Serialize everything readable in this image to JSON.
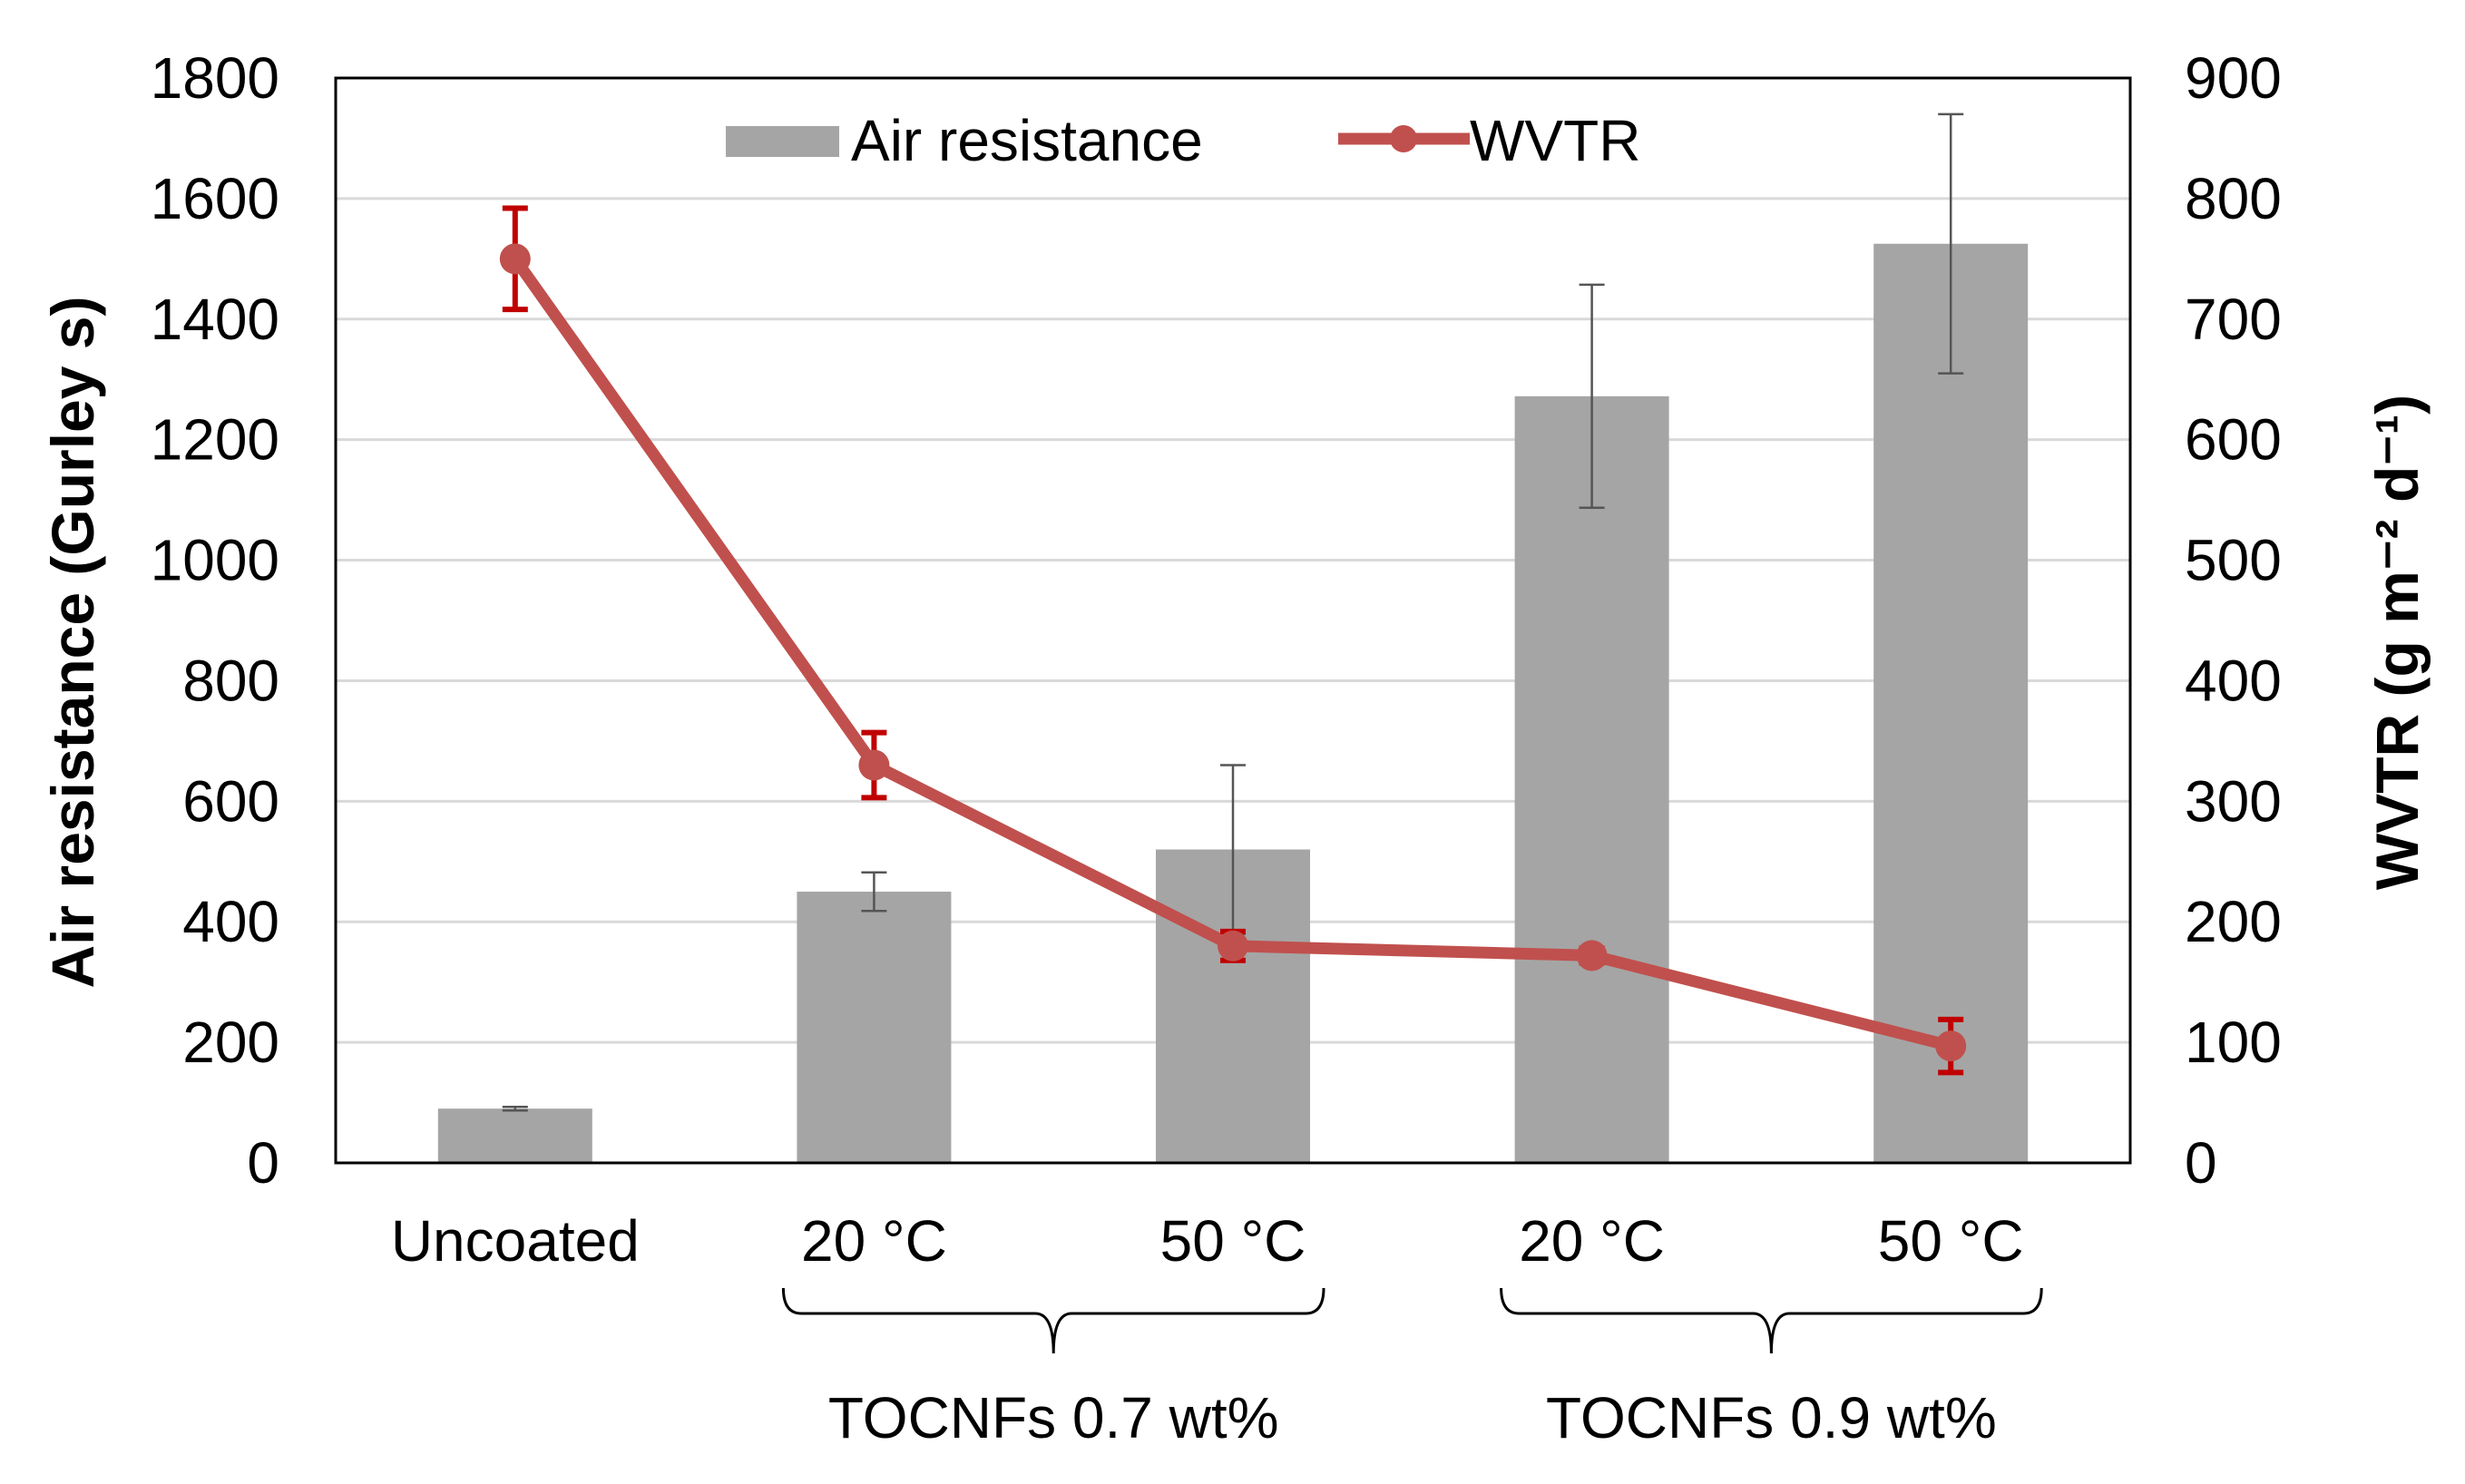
{
  "chart_data": {
    "type": "bar",
    "categories": [
      "Uncoated",
      "20 °C",
      "50 °C",
      "20 °C",
      "50 °C"
    ],
    "groups": [
      {
        "label": "TOCNFs 0.7 wt%",
        "category_indices": [
          1,
          2
        ]
      },
      {
        "label": "TOCNFs 0.9 wt%",
        "category_indices": [
          3,
          4
        ]
      }
    ],
    "series": [
      {
        "name": "Air resistance",
        "type": "bar",
        "axis": "left",
        "values": [
          90,
          450,
          520,
          1272,
          1525
        ],
        "errors": [
          3,
          32,
          140,
          185,
          215
        ],
        "color": "#a5a5a5",
        "error_color": "#555555"
      },
      {
        "name": "WVTR",
        "type": "line",
        "axis": "right",
        "values": [
          750,
          330,
          180,
          172,
          97
        ],
        "errors": [
          42,
          27,
          12,
          6,
          22
        ],
        "color": "#c0504d",
        "error_color": "#c00000"
      }
    ],
    "ylabel": "Air resistance (Gurley s)",
    "y2label": "WVTR (g m⁻² d⁻¹)",
    "ylim": [
      0,
      1800
    ],
    "y2lim": [
      0,
      900
    ],
    "yticks": [
      "0",
      "200",
      "400",
      "600",
      "800",
      "1000",
      "1200",
      "1400",
      "1600",
      "1800"
    ],
    "y2ticks": [
      "0",
      "100",
      "200",
      "300",
      "400",
      "500",
      "600",
      "700",
      "800",
      "900"
    ],
    "ytick_values": [
      0,
      200,
      400,
      600,
      800,
      1000,
      1200,
      1400,
      1600,
      1800
    ],
    "y2tick_values": [
      0,
      100,
      200,
      300,
      400,
      500,
      600,
      700,
      800,
      900
    ],
    "grid": true,
    "legend": {
      "position": "top-center",
      "entries": [
        "Air resistance",
        "WVTR"
      ]
    }
  }
}
